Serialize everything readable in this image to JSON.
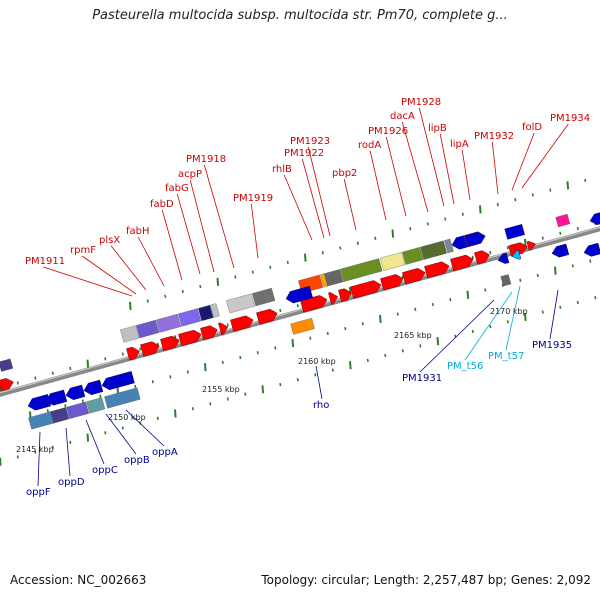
{
  "title": "Pasteurella multocida subsp. multocida str. Pm70, complete g...",
  "footer": {
    "accession": "Accession: NC_002663",
    "topology": "Topology: circular; Length: 2,257,487 bp; Genes: 2,092"
  },
  "colors": {
    "forward_label": "#cc0000",
    "reverse_label": "#00008b",
    "rna_label": "#00aadd",
    "backbone": "#888888",
    "tick": "#2e7d32"
  },
  "scale_labels": [
    "2145 kbp",
    "2150 kbp",
    "2155 kbp",
    "2160 kbp",
    "2165 kbp",
    "2170 kbp"
  ],
  "gene_labels_forward": [
    "PM1911",
    "rpmF",
    "plsX",
    "fabH",
    "fabD",
    "fabG",
    "acpP",
    "PM1918",
    "PM1919",
    "rhlB",
    "PM1922",
    "PM1923",
    "pbp2",
    "rodA",
    "PM1926",
    "dacA",
    "PM1928",
    "lipB",
    "lipA",
    "PM1932",
    "folD",
    "PM1934"
  ],
  "gene_labels_reverse": [
    "oppF",
    "oppD",
    "oppC",
    "oppB",
    "oppA",
    "rho",
    "PM1931",
    "PM_t56",
    "PM_t57",
    "PM1935"
  ]
}
